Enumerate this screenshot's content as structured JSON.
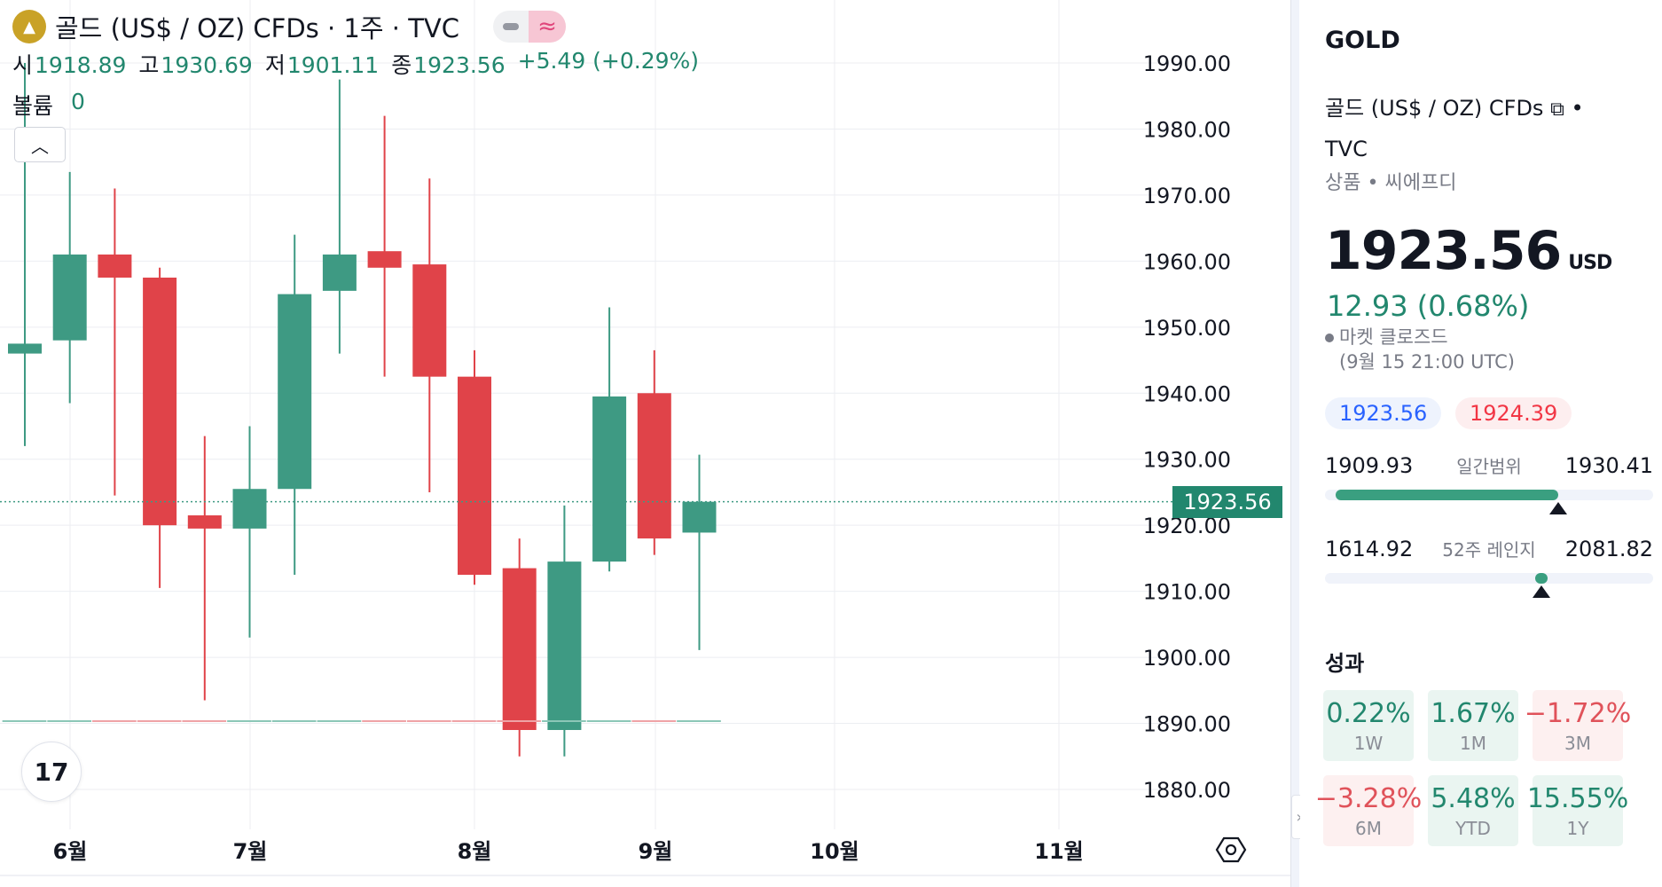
{
  "legend": {
    "title": "골드 (US$ / OZ) CFDs · 1주 · TVC",
    "open_label": "시",
    "open_value": "1918.89",
    "high_label": "고",
    "high_value": "1930.69",
    "low_label": "저",
    "low_value": "1901.11",
    "close_label": "종",
    "close_value": "1923.56",
    "change": "+5.49 (+0.29%)",
    "volume_label": "볼륨",
    "volume_value": "0",
    "collapse_icon": "chevron-up-icon"
  },
  "chart_data": {
    "type": "candlestick",
    "x_ticks": [
      "6월",
      "7월",
      "8월",
      "9월",
      "10월",
      "11월"
    ],
    "y_ticks": [
      "1880.00",
      "1890.00",
      "1900.00",
      "1910.00",
      "1920.00",
      "1930.00",
      "1940.00",
      "1950.00",
      "1960.00",
      "1970.00",
      "1980.00",
      "1990.00"
    ],
    "ylim": [
      1875,
      1992
    ],
    "last_price_label": "1923.56",
    "last_price": 1923.56,
    "candles": [
      {
        "open": 1946.0,
        "high": 1990.0,
        "low": 1932.0,
        "close": 1947.5
      },
      {
        "open": 1948.0,
        "high": 1973.5,
        "low": 1938.5,
        "close": 1961.0
      },
      {
        "open": 1961.0,
        "high": 1971.0,
        "low": 1924.5,
        "close": 1957.5
      },
      {
        "open": 1957.5,
        "high": 1959.0,
        "low": 1910.5,
        "close": 1920.0
      },
      {
        "open": 1921.5,
        "high": 1933.5,
        "low": 1893.5,
        "close": 1919.5
      },
      {
        "open": 1919.5,
        "high": 1935.0,
        "low": 1903.0,
        "close": 1925.5
      },
      {
        "open": 1925.5,
        "high": 1964.0,
        "low": 1912.5,
        "close": 1955.0
      },
      {
        "open": 1955.5,
        "high": 1987.5,
        "low": 1946.0,
        "close": 1961.0
      },
      {
        "open": 1961.5,
        "high": 1982.0,
        "low": 1942.5,
        "close": 1959.0
      },
      {
        "open": 1959.5,
        "high": 1972.5,
        "low": 1925.0,
        "close": 1942.5
      },
      {
        "open": 1942.5,
        "high": 1946.5,
        "low": 1911.0,
        "close": 1912.5
      },
      {
        "open": 1913.5,
        "high": 1918.0,
        "low": 1885.0,
        "close": 1889.0
      },
      {
        "open": 1889.0,
        "high": 1923.0,
        "low": 1885.0,
        "close": 1914.5
      },
      {
        "open": 1914.5,
        "high": 1953.0,
        "low": 1913.0,
        "close": 1939.5
      },
      {
        "open": 1940.0,
        "high": 1946.5,
        "low": 1915.5,
        "close": 1918.0
      },
      {
        "open": 1918.89,
        "high": 1930.69,
        "low": 1901.11,
        "close": 1923.56
      }
    ],
    "volume": 0,
    "colors": {
      "up": "#3e9a83",
      "down": "#e04349",
      "grid": "#eceef2",
      "axis_text": "#131722"
    }
  },
  "side": {
    "symbol": "GOLD",
    "description": "골드 (US$ / OZ) CFDs",
    "external_icon": "external-link-icon",
    "exchange": "TVC",
    "type_label": "상품",
    "subtype_label": "씨에프디",
    "price": "1923.56",
    "currency": "USD",
    "change": "12.93 (0.68%)",
    "market_status": "마켓 클로즈드",
    "market_time": "(9월 15 21:00 UTC)",
    "bid": "1923.56",
    "ask": "1924.39",
    "day_range_low": "1909.93",
    "day_range_label": "일간범위",
    "day_range_high": "1930.41",
    "day_range_fill": 0.7,
    "year_range_low": "1614.92",
    "year_range_label": "52주 레인지",
    "year_range_high": "2081.82",
    "year_range_position": 0.66,
    "performance_title": "성과",
    "performance": [
      {
        "value": "0.22%",
        "label": "1W",
        "trend": "pos"
      },
      {
        "value": "1.67%",
        "label": "1M",
        "trend": "pos"
      },
      {
        "value": "−1.72%",
        "label": "3M",
        "trend": "neg"
      },
      {
        "value": "−3.28%",
        "label": "6M",
        "trend": "neg"
      },
      {
        "value": "5.48%",
        "label": "YTD",
        "trend": "pos"
      },
      {
        "value": "15.55%",
        "label": "1Y",
        "trend": "pos"
      }
    ]
  }
}
